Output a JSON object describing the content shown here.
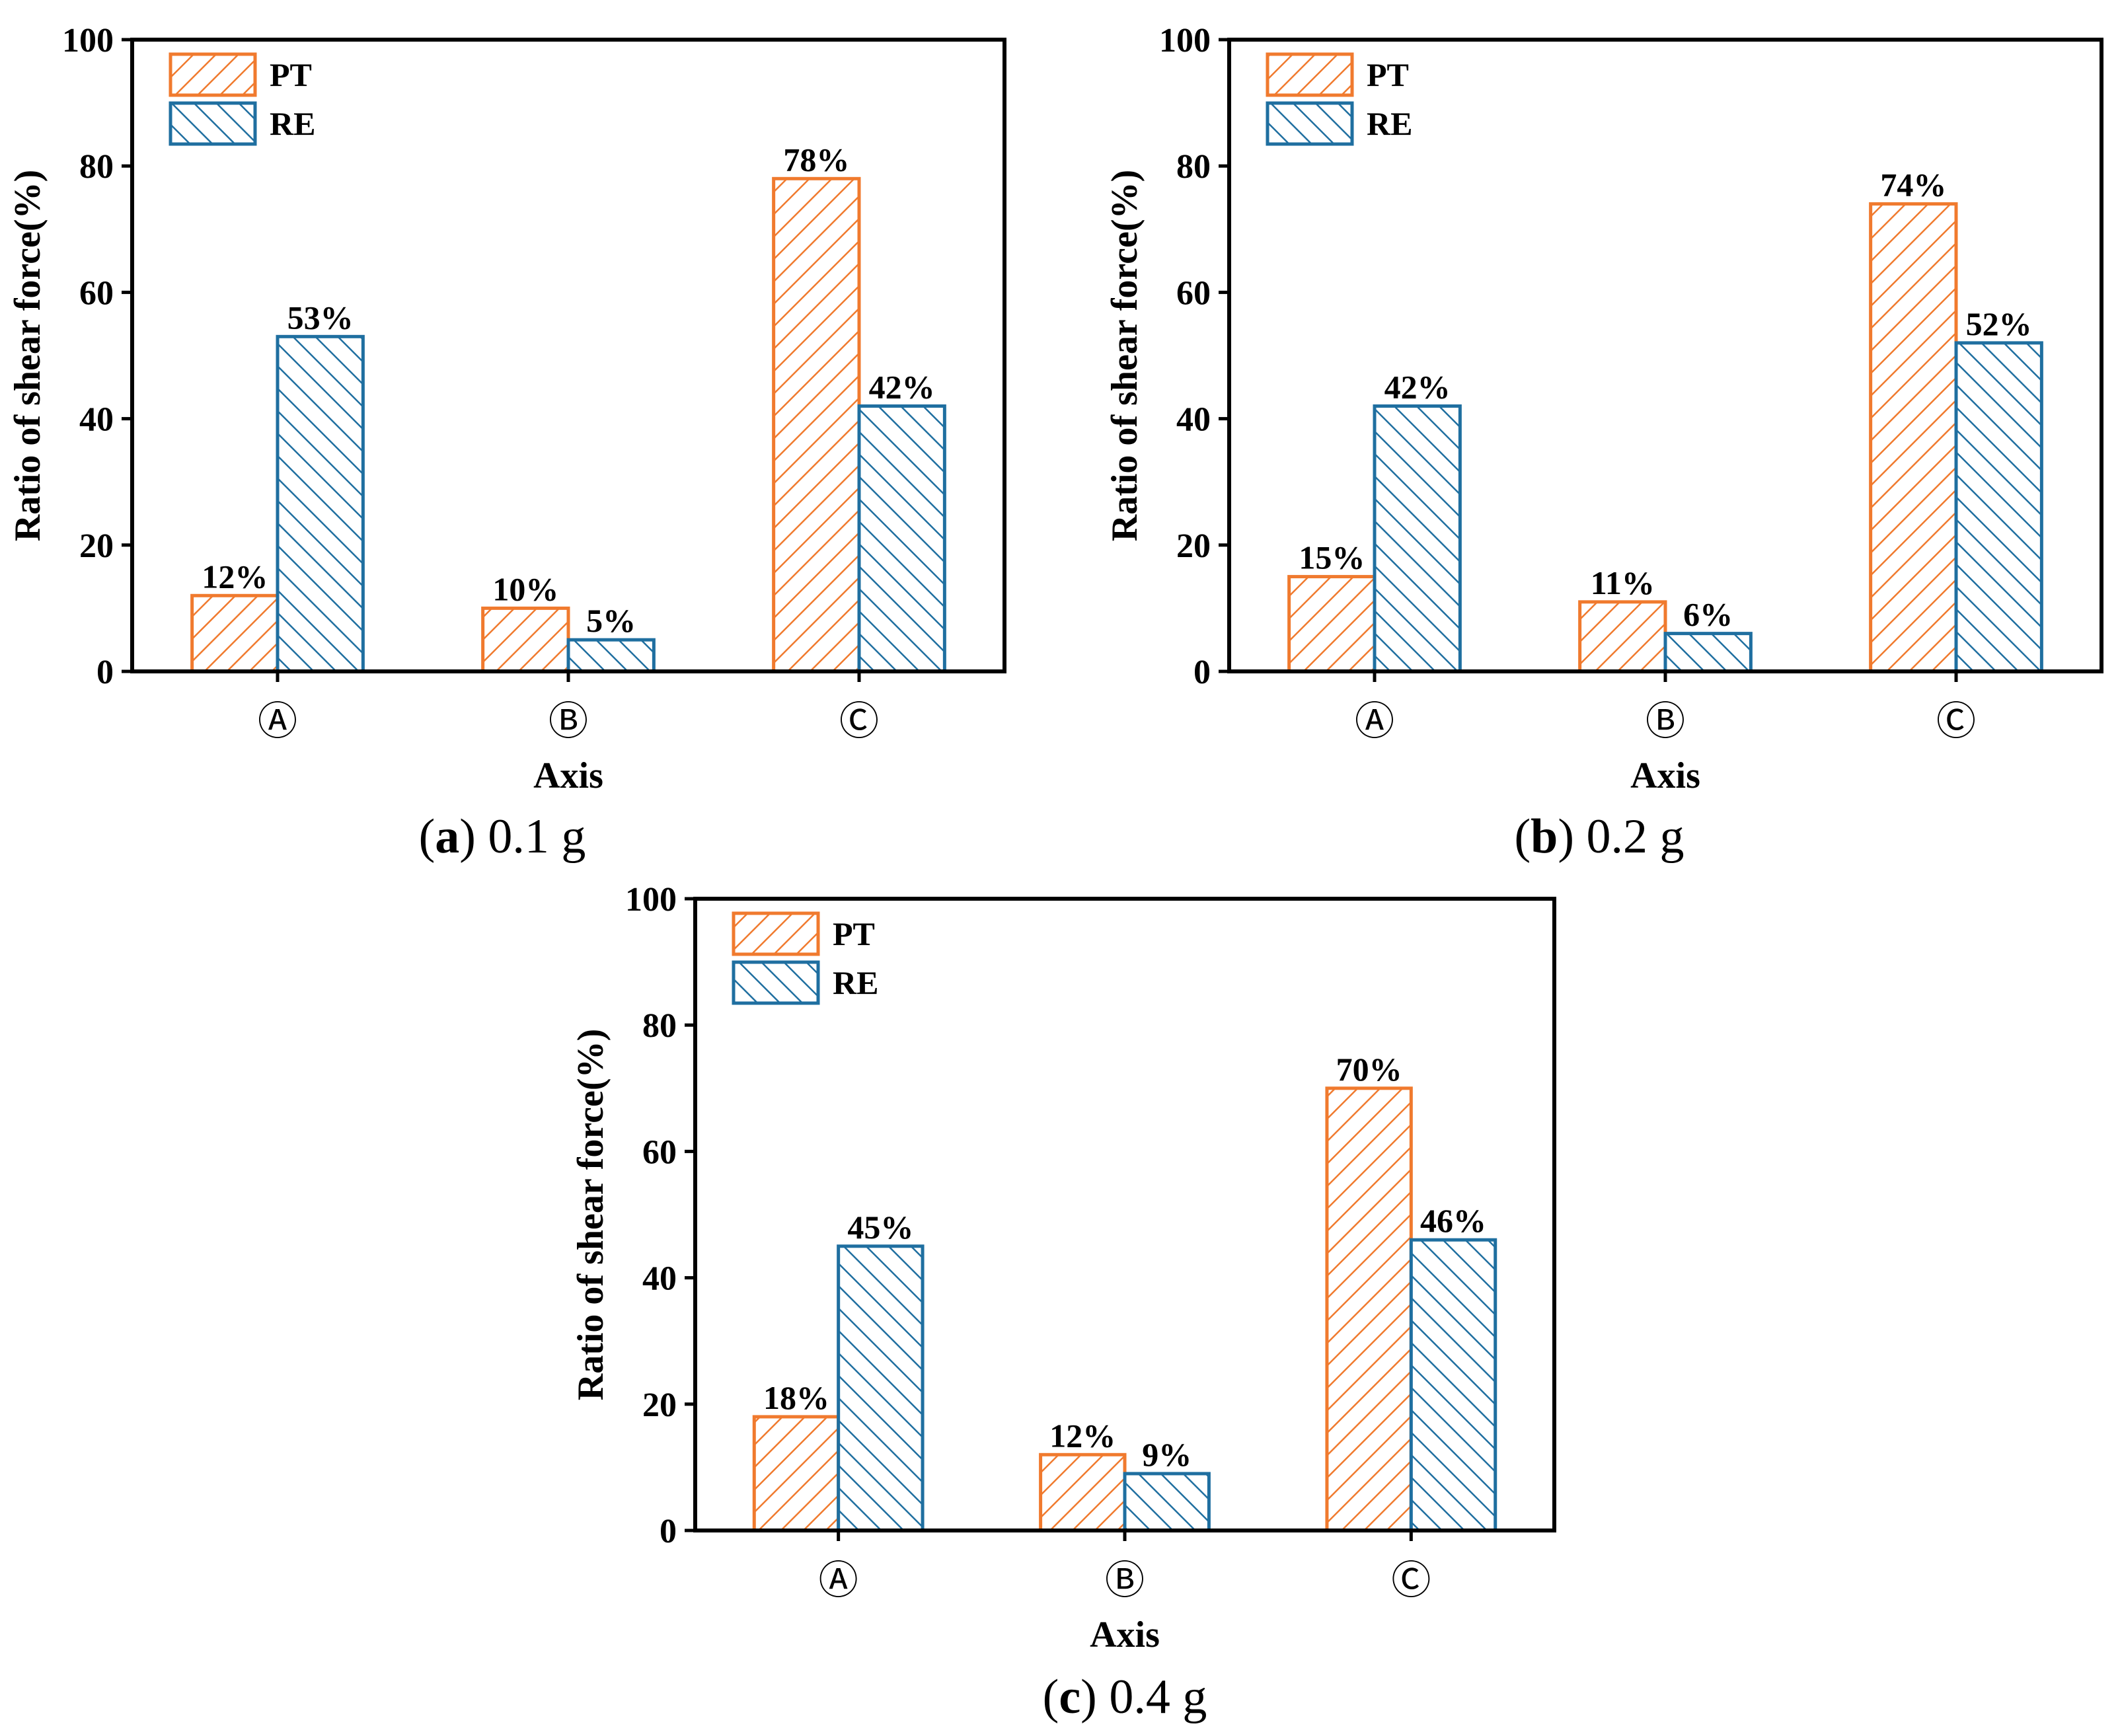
{
  "colors": {
    "PT": "#f07a2e",
    "RE": "#1f6fa0",
    "axis": "#000000"
  },
  "chart_data": [
    {
      "type": "bar",
      "panel_letter": "a",
      "caption": "0.1 g",
      "categories": [
        "Ⓐ",
        "Ⓑ",
        "Ⓒ"
      ],
      "series": [
        {
          "name": "PT",
          "values": [
            12,
            10,
            78
          ],
          "labels": [
            "12%",
            "10%",
            "78%"
          ]
        },
        {
          "name": "RE",
          "values": [
            53,
            5,
            42
          ],
          "labels": [
            "53%",
            "5%",
            "42%"
          ]
        }
      ],
      "xlabel": "Axis",
      "ylabel": "Ratio of shear force(%)",
      "ylim": [
        0,
        100
      ],
      "yticks": [
        "0",
        "20",
        "40",
        "60",
        "80",
        "100"
      ],
      "legend": "top-left"
    },
    {
      "type": "bar",
      "panel_letter": "b",
      "caption": "0.2 g",
      "categories": [
        "Ⓐ",
        "Ⓑ",
        "Ⓒ"
      ],
      "series": [
        {
          "name": "PT",
          "values": [
            15,
            11,
            74
          ],
          "labels": [
            "15%",
            "11%",
            "74%"
          ]
        },
        {
          "name": "RE",
          "values": [
            42,
            6,
            52
          ],
          "labels": [
            "42%",
            "6%",
            "52%"
          ]
        }
      ],
      "xlabel": "Axis",
      "ylabel": "Ratio of shear force(%)",
      "ylim": [
        0,
        100
      ],
      "yticks": [
        "0",
        "20",
        "40",
        "60",
        "80",
        "100"
      ],
      "legend": "top-left"
    },
    {
      "type": "bar",
      "panel_letter": "c",
      "caption": "0.4 g",
      "categories": [
        "Ⓐ",
        "Ⓑ",
        "Ⓒ"
      ],
      "series": [
        {
          "name": "PT",
          "values": [
            18,
            12,
            70
          ],
          "labels": [
            "18%",
            "12%",
            "70%"
          ]
        },
        {
          "name": "RE",
          "values": [
            45,
            9,
            46
          ],
          "labels": [
            "45%",
            "9%",
            "46%"
          ]
        }
      ],
      "xlabel": "Axis",
      "ylabel": "Ratio of shear force(%)",
      "ylim": [
        0,
        100
      ],
      "yticks": [
        "0",
        "20",
        "40",
        "60",
        "80",
        "100"
      ],
      "legend": "top-left"
    }
  ]
}
